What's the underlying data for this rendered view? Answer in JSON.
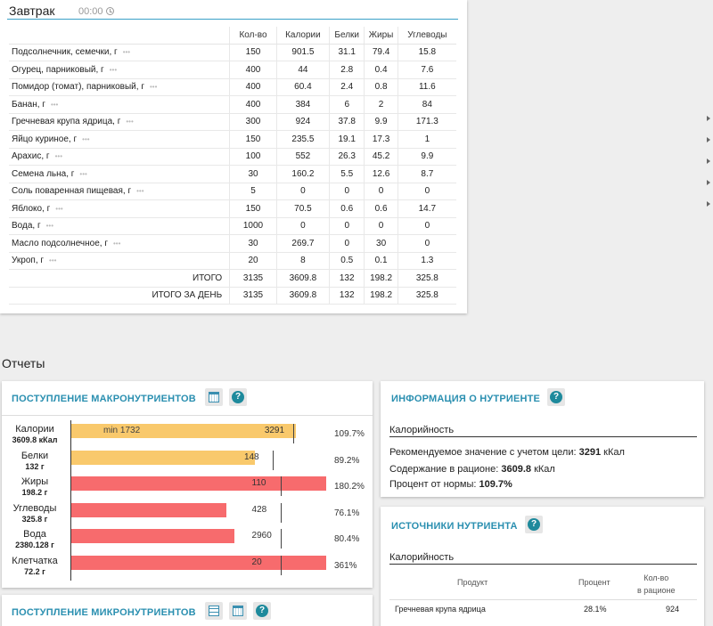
{
  "breakfast": {
    "title": "Завтрак",
    "time": "00:00",
    "columns": [
      "Кол-во",
      "Калории",
      "Белки",
      "Жиры",
      "Углеводы"
    ],
    "rows": [
      {
        "name": "Подсолнечник, семечки, г",
        "qty": "150",
        "cal": "901.5",
        "prot": "31.1",
        "fat": "79.4",
        "carb": "15.8"
      },
      {
        "name": "Огурец, парниковый, г",
        "qty": "400",
        "cal": "44",
        "prot": "2.8",
        "fat": "0.4",
        "carb": "7.6"
      },
      {
        "name": "Помидор (томат), парниковый, г",
        "qty": "400",
        "cal": "60.4",
        "prot": "2.4",
        "fat": "0.8",
        "carb": "11.6"
      },
      {
        "name": "Банан, г",
        "qty": "400",
        "cal": "384",
        "prot": "6",
        "fat": "2",
        "carb": "84"
      },
      {
        "name": "Гречневая крупа ядрица, г",
        "qty": "300",
        "cal": "924",
        "prot": "37.8",
        "fat": "9.9",
        "carb": "171.3"
      },
      {
        "name": "Яйцо куриное, г",
        "qty": "150",
        "cal": "235.5",
        "prot": "19.1",
        "fat": "17.3",
        "carb": "1"
      },
      {
        "name": "Арахис, г",
        "qty": "100",
        "cal": "552",
        "prot": "26.3",
        "fat": "45.2",
        "carb": "9.9"
      },
      {
        "name": "Семена льна, г",
        "qty": "30",
        "cal": "160.2",
        "prot": "5.5",
        "fat": "12.6",
        "carb": "8.7"
      },
      {
        "name": "Соль поваренная пищевая, г",
        "qty": "5",
        "cal": "0",
        "prot": "0",
        "fat": "0",
        "carb": "0"
      },
      {
        "name": "Яблоко, г",
        "qty": "150",
        "cal": "70.5",
        "prot": "0.6",
        "fat": "0.6",
        "carb": "14.7"
      },
      {
        "name": "Вода, г",
        "qty": "1000",
        "cal": "0",
        "prot": "0",
        "fat": "0",
        "carb": "0"
      },
      {
        "name": "Масло подсолнечное, г",
        "qty": "30",
        "cal": "269.7",
        "prot": "0",
        "fat": "30",
        "carb": "0"
      },
      {
        "name": "Укроп, г",
        "qty": "20",
        "cal": "8",
        "prot": "0.5",
        "fat": "0.1",
        "carb": "1.3"
      }
    ],
    "totals": [
      {
        "label": "ИТОГО",
        "qty": "3135",
        "cal": "3609.8",
        "prot": "132",
        "fat": "198.2",
        "carb": "325.8"
      },
      {
        "label": "ИТОГО ЗА ДЕНЬ",
        "qty": "3135",
        "cal": "3609.8",
        "prot": "132",
        "fat": "198.2",
        "carb": "325.8"
      }
    ],
    "row_menu_glyph": "•••"
  },
  "reports_title": "Отчеты",
  "macros": {
    "title": "ПОСТУПЛЕНИЕ МАКРОНУТРИЕНТОВ",
    "min_label": "min 1732",
    "items": [
      {
        "name": "Калории",
        "amount": "3609.8 кКал",
        "target": "3291",
        "fill_fraction": 0.88,
        "target_fraction": 0.87,
        "percent": "109.7%",
        "status": "ok"
      },
      {
        "name": "Белки",
        "amount": "132 г",
        "target": "148",
        "fill_fraction": 0.72,
        "target_fraction": 0.79,
        "percent": "89.2%",
        "status": "ok"
      },
      {
        "name": "Жиры",
        "amount": "198.2 г",
        "target": "110",
        "fill_fraction": 1.0,
        "target_fraction": 0.82,
        "percent": "180.2%",
        "status": "bad"
      },
      {
        "name": "Углеводы",
        "amount": "325.8 г",
        "target": "428",
        "fill_fraction": 0.61,
        "target_fraction": 0.82,
        "percent": "76.1%",
        "status": "bad"
      },
      {
        "name": "Вода",
        "amount": "2380.128 г",
        "target": "2960",
        "fill_fraction": 0.64,
        "target_fraction": 0.82,
        "percent": "80.4%",
        "status": "bad"
      },
      {
        "name": "Клетчатка",
        "amount": "72.2 г",
        "target": "20",
        "fill_fraction": 1.0,
        "target_fraction": 0.82,
        "percent": "361%",
        "status": "bad"
      }
    ]
  },
  "micros": {
    "title": "ПОСТУПЛЕНИЕ МИКРОНУТРИЕНТОВ"
  },
  "nutrient_info": {
    "title": "ИНФОРМАЦИЯ О НУТРИЕНТЕ",
    "subtitle": "Калорийность",
    "line1_label": "Рекомендуемое значение с учетом цели:",
    "line1_value": "3291",
    "line1_unit": "кКал",
    "line2_label": "Содержание в рационе:",
    "line2_value": "3609.8",
    "line2_unit": "кКал",
    "line3_label": "Процент от нормы:",
    "line3_value": "109.7%"
  },
  "sources": {
    "title": "ИСТОЧНИКИ НУТРИЕНТА",
    "subtitle": "Калорийность",
    "col_product": "Продукт",
    "col_percent": "Процент",
    "col_qty_line1": "Кол-во",
    "col_qty_line2": "в рационе",
    "rows": [
      {
        "product": "Гречневая крупа ядрица",
        "percent": "28.1%",
        "qty": "924"
      }
    ]
  },
  "colors": {
    "accent": "#2a8fb0",
    "ok_bar": "#f9c96c",
    "bad_bar": "#f76b6d",
    "help_icon": "#1e8a9c"
  }
}
